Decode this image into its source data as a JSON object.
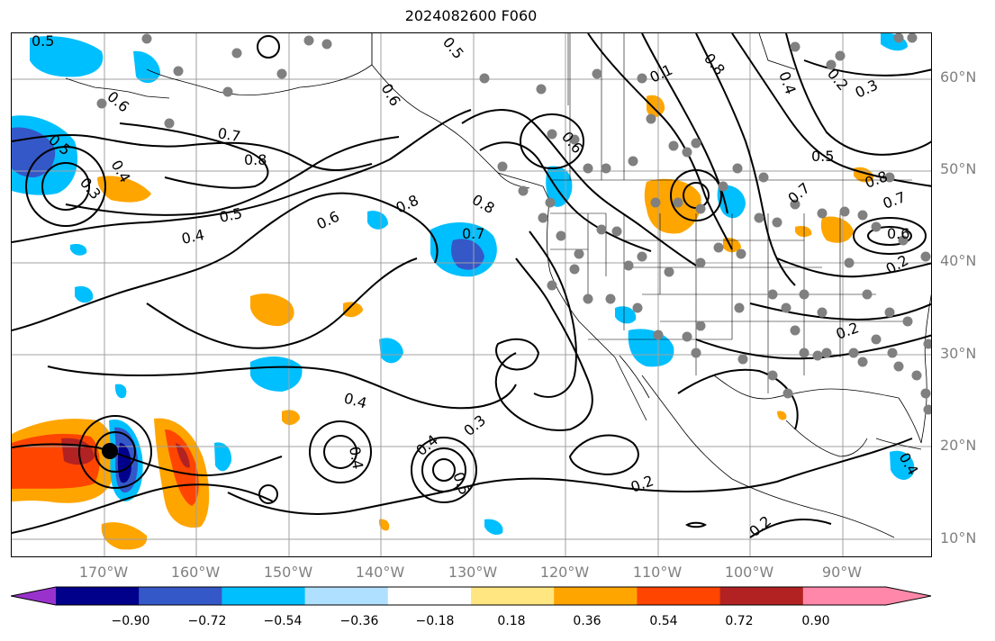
{
  "title": "2024082600 F060",
  "lat_labels": [
    "60°N",
    "50°N",
    "40°N",
    "30°N",
    "20°N",
    "10°N"
  ],
  "lon_labels": [
    "170°W",
    "160°W",
    "150°W",
    "140°W",
    "130°W",
    "120°W",
    "110°W",
    "100°W",
    "90°W"
  ],
  "contour_labels": [
    "0.5",
    "0.6",
    "0.5",
    "0.4",
    "0.3",
    "0.7",
    "0.8",
    "0.5",
    "0.4",
    "0.6",
    "0.8",
    "0.8",
    "0.7",
    "0.6",
    "0.4",
    "0.5",
    "0.4",
    "0.5",
    "0.6",
    "0.8",
    "0.1",
    "0.5",
    "0.7",
    "0.4",
    "0.2",
    "0.3",
    "0.8",
    "0.7",
    "0.6",
    "0.2",
    "0.3",
    "0.4",
    "0.2",
    "0.2",
    "0.2",
    "0.4"
  ],
  "colorbar": {
    "ticks": [
      "−0.90",
      "−0.72",
      "−0.54",
      "−0.36",
      "−0.18",
      "0.18",
      "0.36",
      "0.54",
      "0.72",
      "0.90"
    ],
    "colors": [
      "#9932cc",
      "#00008b",
      "#3458c8",
      "#00bfff",
      "#b0e0ff",
      "#ffffff",
      "#ffe680",
      "#ffa500",
      "#ff4500",
      "#b22222",
      "#ff88aa",
      "#ff88aa"
    ]
  },
  "colors": {
    "coast": "#000000",
    "grid": "#a0a0a0",
    "stations": "#808080",
    "contour": "#000000"
  }
}
